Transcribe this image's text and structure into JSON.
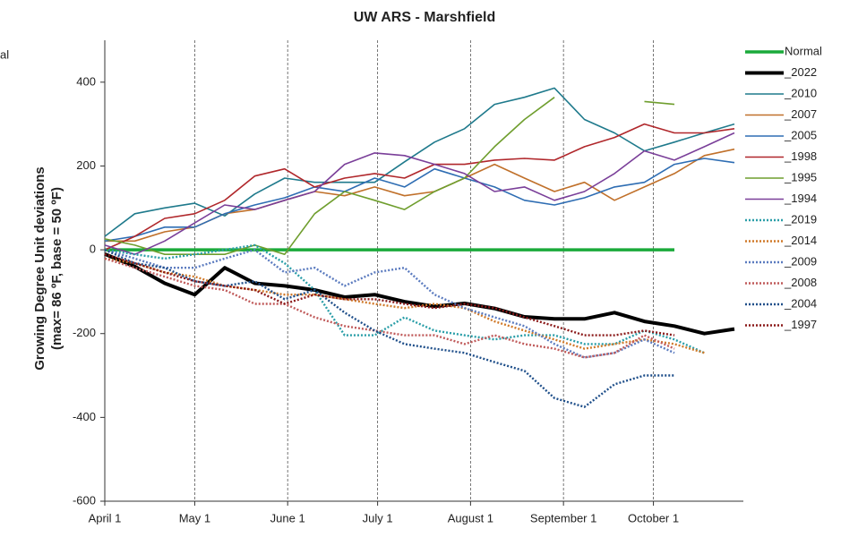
{
  "chart_data": {
    "type": "line",
    "title": "UW ARS - Marshfield",
    "y_label": [
      "Growing Degree Unit deviations",
      "(max= 86 ºF, base = 50 ºF)"
    ],
    "legend_fragment": "al",
    "x": [
      0,
      10,
      20,
      30,
      40,
      50,
      60,
      70,
      80,
      90,
      100,
      110,
      120,
      130,
      140,
      150,
      160,
      170,
      180,
      190,
      200,
      210
    ],
    "xlim": [
      0,
      213
    ],
    "xticks": [
      {
        "value": 0,
        "label": "April 1"
      },
      {
        "value": 30,
        "label": "May 1"
      },
      {
        "value": 61,
        "label": "June 1"
      },
      {
        "value": 91,
        "label": "July 1"
      },
      {
        "value": 122,
        "label": "August 1"
      },
      {
        "value": 153,
        "label": "September 1"
      },
      {
        "value": 183,
        "label": "October 1"
      }
    ],
    "ylim": [
      -600,
      500
    ],
    "yticks": [
      -600,
      -400,
      -200,
      0,
      200,
      400
    ],
    "x_grid": true,
    "legend": "right",
    "series": [
      {
        "name": "Normal",
        "color": "#1aaa3a",
        "width": 3.5,
        "style": "solid",
        "values": [
          0,
          0,
          0,
          0,
          0,
          0,
          0,
          0,
          0,
          0,
          0,
          0,
          0,
          0,
          0,
          0,
          0,
          0,
          0,
          0,
          null,
          null
        ]
      },
      {
        "name": "_2022",
        "color": "#000000",
        "width": 4,
        "style": "solid",
        "values": [
          -10,
          -40,
          -80,
          -107,
          -43,
          -80,
          -86,
          -96,
          -113,
          -107,
          -124,
          -135,
          -128,
          -140,
          -160,
          -165,
          -165,
          -150,
          -171,
          -182,
          -200,
          -189
        ]
      },
      {
        "name": "_2010",
        "color": "#1f7a8c",
        "width": 1.6,
        "style": "solid",
        "values": [
          32,
          86,
          100,
          111,
          81,
          133,
          171,
          161,
          161,
          161,
          210,
          257,
          289,
          347,
          364,
          386,
          311,
          279,
          236,
          257,
          279,
          300
        ]
      },
      {
        "name": "_2007",
        "color": "#c0702a",
        "width": 1.6,
        "style": "solid",
        "values": [
          21,
          21,
          43,
          54,
          86,
          96,
          118,
          139,
          129,
          150,
          129,
          139,
          171,
          204,
          171,
          139,
          161,
          118,
          150,
          182,
          225,
          240
        ]
      },
      {
        "name": "_2005",
        "color": "#2e6db3",
        "width": 1.6,
        "style": "solid",
        "values": [
          21,
          32,
          54,
          54,
          86,
          107,
          124,
          150,
          139,
          171,
          150,
          193,
          171,
          150,
          118,
          107,
          124,
          150,
          161,
          204,
          218,
          208
        ]
      },
      {
        "name": "_1998",
        "color": "#b0272b",
        "width": 1.6,
        "style": "solid",
        "values": [
          0,
          32,
          75,
          86,
          118,
          176,
          193,
          150,
          171,
          182,
          171,
          204,
          204,
          214,
          218,
          214,
          246,
          268,
          300,
          279,
          279,
          289
        ]
      },
      {
        "name": "_1995",
        "color": "#6f9e2e",
        "width": 1.6,
        "style": "solid",
        "values": [
          26,
          11,
          -11,
          -11,
          -11,
          11,
          -11,
          86,
          139,
          118,
          96,
          139,
          171,
          246,
          311,
          364,
          null,
          null,
          354,
          347,
          null,
          null
        ]
      },
      {
        "name": "_1994",
        "color": "#7a3f99",
        "width": 1.6,
        "style": "solid",
        "values": [
          11,
          -11,
          21,
          64,
          107,
          96,
          118,
          139,
          204,
          231,
          225,
          204,
          182,
          139,
          150,
          118,
          139,
          182,
          236,
          214,
          246,
          279
        ]
      },
      {
        "name": "_2019",
        "color": "#2a9ea8",
        "width": 2.4,
        "style": "dotted",
        "values": [
          0,
          -11,
          -21,
          -11,
          0,
          11,
          -32,
          -96,
          -204,
          -204,
          -161,
          -193,
          -204,
          -214,
          -204,
          -204,
          -225,
          -225,
          -193,
          -214,
          -246,
          null
        ]
      },
      {
        "name": "_2014",
        "color": "#d07a2a",
        "width": 2.4,
        "style": "dotted",
        "values": [
          -21,
          -32,
          -54,
          -64,
          -86,
          -96,
          -107,
          -107,
          -118,
          -129,
          -139,
          -129,
          -139,
          -171,
          -193,
          -214,
          -236,
          -225,
          -214,
          -225,
          -246,
          null
        ]
      },
      {
        "name": "_2009",
        "color": "#5b7bbf",
        "width": 2.4,
        "style": "dotted",
        "values": [
          0,
          -21,
          -43,
          -43,
          -21,
          0,
          -54,
          -43,
          -86,
          -54,
          -43,
          -107,
          -139,
          -161,
          -182,
          -225,
          -257,
          -246,
          -214,
          -246,
          null,
          null
        ]
      },
      {
        "name": "_2008",
        "color": "#c05a5a",
        "width": 2.4,
        "style": "dotted",
        "values": [
          -21,
          -43,
          -64,
          -86,
          -96,
          -129,
          -129,
          -161,
          -182,
          -193,
          -204,
          -204,
          -225,
          -204,
          -225,
          -236,
          -257,
          -246,
          -204,
          -236,
          null,
          null
        ]
      },
      {
        "name": "_2004",
        "color": "#1f4f8a",
        "width": 2.4,
        "style": "dotted",
        "values": [
          0,
          -32,
          -43,
          -75,
          -86,
          -75,
          -118,
          -96,
          -150,
          -193,
          -225,
          -236,
          -246,
          -268,
          -289,
          -354,
          -375,
          -321,
          -300,
          -300,
          null,
          null
        ]
      },
      {
        "name": "_1997",
        "color": "#8b1a1a",
        "width": 2.4,
        "style": "dotted",
        "values": [
          -11,
          -32,
          -54,
          -75,
          -86,
          -96,
          -129,
          -107,
          -118,
          -118,
          -129,
          -139,
          -129,
          -139,
          -161,
          -182,
          -204,
          -204,
          -193,
          -204,
          null,
          null
        ]
      }
    ]
  }
}
